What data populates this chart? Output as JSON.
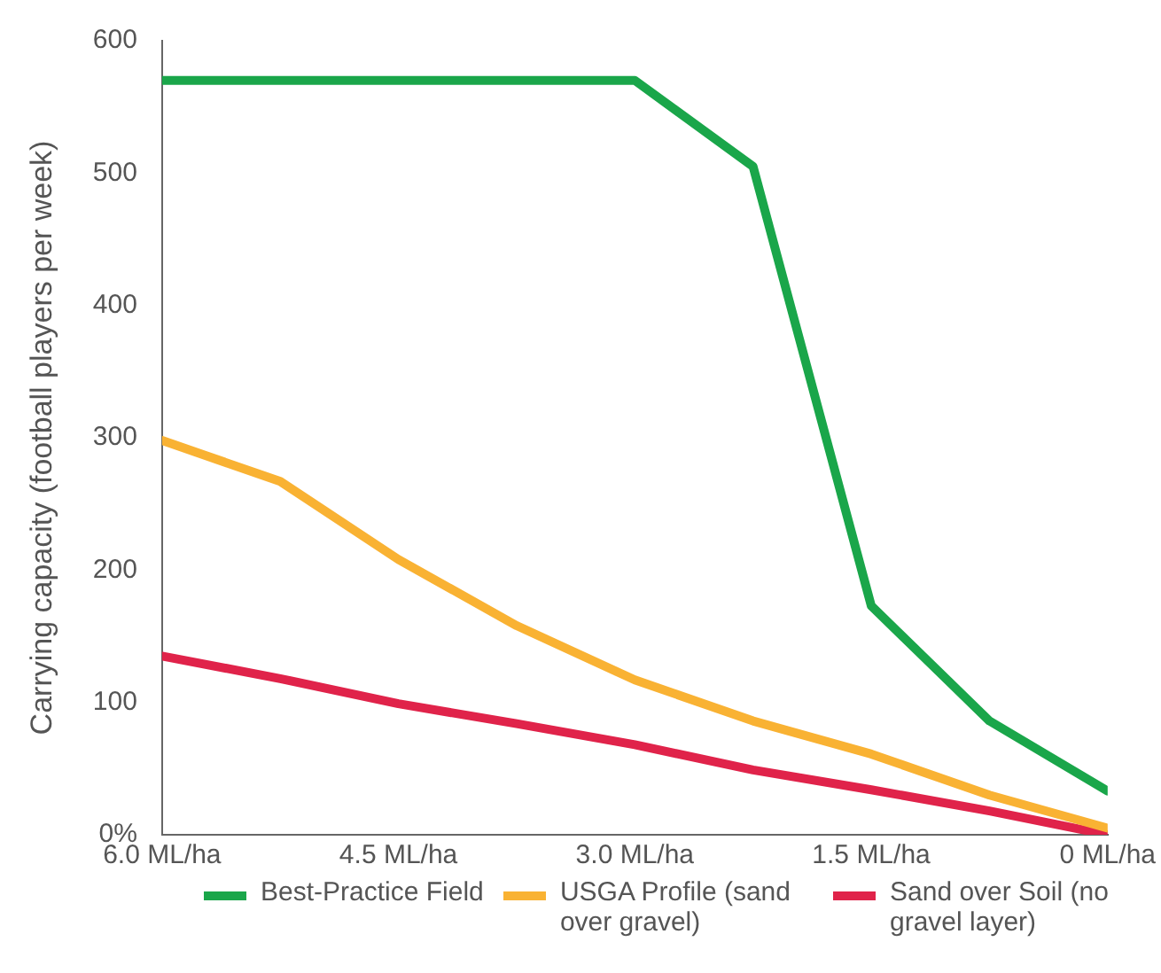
{
  "chart_data": {
    "type": "line",
    "ylabel": "Carrying capacity (football players per week)",
    "xlim": [
      6,
      0
    ],
    "xticks": [
      {
        "value": 6,
        "label": "6.0 ML/ha"
      },
      {
        "value": 4.5,
        "label": "4.5 ML/ha"
      },
      {
        "value": 3,
        "label": "3.0 ML/ha"
      },
      {
        "value": 1.5,
        "label": "1.5 ML/ha"
      },
      {
        "value": 0,
        "label": "0 ML/ha"
      }
    ],
    "ylim": [
      0,
      600
    ],
    "yticks": [
      {
        "value": 0,
        "label": "0%"
      },
      100,
      200,
      300,
      400,
      500,
      600
    ],
    "grid": false,
    "legend": "bottom",
    "marker": "none",
    "line_style": "solid",
    "series": [
      {
        "name": "Best-Practice Field",
        "color": "#1aa64a",
        "x": [
          6,
          3,
          2.25,
          1.5,
          0.75,
          0
        ],
        "values": [
          570,
          570,
          505,
          173,
          86,
          33
        ]
      },
      {
        "name": "USGA Profile (sand over gravel)",
        "color": "#f9b233",
        "x": [
          6,
          5.25,
          4.5,
          3.75,
          3,
          2.25,
          1.5,
          0.75,
          0
        ],
        "values": [
          298,
          267,
          208,
          158,
          117,
          86,
          61,
          30,
          5
        ]
      },
      {
        "name": "Sand over Soil (no gravel layer)",
        "color": "#e0234a",
        "x": [
          6,
          5.25,
          4.5,
          3.75,
          3,
          2.25,
          1.5,
          0.75,
          0
        ],
        "values": [
          135,
          118,
          99,
          84,
          68,
          49,
          34,
          18,
          0
        ]
      }
    ]
  }
}
